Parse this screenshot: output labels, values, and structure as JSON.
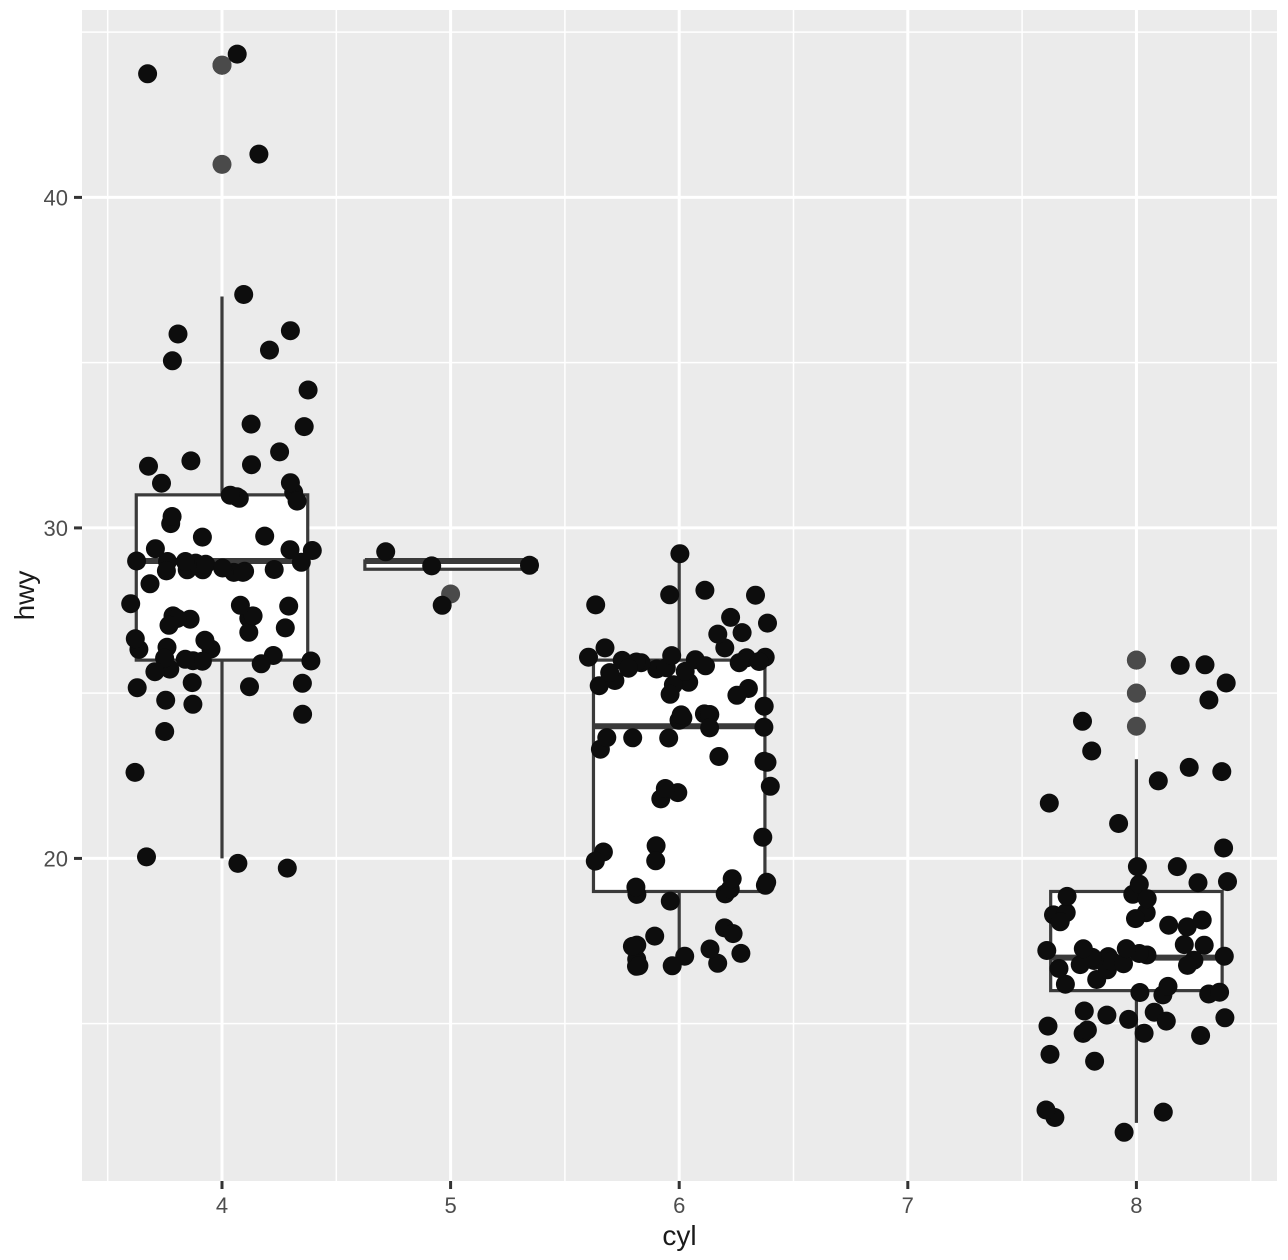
{
  "chart_data": {
    "type": "boxplot",
    "subtype": "boxplot-with-jittered-points",
    "title": "",
    "xlabel": "cyl",
    "ylabel": "hwy",
    "legend": "none",
    "grid": true,
    "x_ticks": [
      4,
      5,
      6,
      7,
      8
    ],
    "x_tick_labels": [
      "4",
      "5",
      "6",
      "7",
      "8"
    ],
    "y_ticks": [
      20,
      30,
      40
    ],
    "y_tick_labels": [
      "20",
      "30",
      "40"
    ],
    "x_minor_ticks": [
      3.5,
      4.5,
      5.5,
      6.5,
      7.5,
      8.5
    ],
    "y_minor_ticks": [
      15,
      25,
      35,
      45
    ],
    "xlim": [
      3.3876,
      8.615
    ],
    "ylim": [
      10.24,
      45.67
    ],
    "box_width": 0.75,
    "jitter_width": 0.4,
    "jitter_height": 0.4,
    "groups": [
      {
        "cyl": 4,
        "n": 81,
        "box": {
          "whisker_low": 20,
          "q1": 26,
          "median": 29,
          "q3": 31,
          "whisker_high": 37
        },
        "outliers": [
          41,
          44,
          44
        ],
        "values": [
          20,
          20,
          20,
          23,
          24,
          24,
          25,
          25,
          25,
          25,
          25,
          25,
          26,
          26,
          26,
          26,
          26,
          26,
          26,
          26,
          26,
          26,
          26,
          26,
          27,
          27,
          27,
          27,
          27,
          27,
          27,
          27,
          27,
          27,
          28,
          28,
          28,
          28,
          29,
          29,
          29,
          29,
          29,
          29,
          29,
          29,
          29,
          29,
          29,
          29,
          29,
          29,
          29,
          29,
          29,
          30,
          30,
          30,
          30,
          31,
          31,
          31,
          31,
          31,
          31,
          31,
          32,
          32,
          32,
          32,
          33,
          33,
          34,
          35,
          35,
          36,
          36,
          37,
          41,
          44,
          44
        ]
      },
      {
        "cyl": 5,
        "n": 4,
        "box": {
          "whisker_low": 28.75,
          "q1": 28.75,
          "median": 29,
          "q3": 29,
          "whisker_high": 29
        },
        "outliers": [
          28
        ],
        "values": [
          28,
          29,
          29,
          29
        ]
      },
      {
        "cyl": 6,
        "n": 79,
        "box": {
          "whisker_low": 17,
          "q1": 19,
          "median": 24,
          "q3": 26,
          "whisker_high": 29
        },
        "outliers": [],
        "values": [
          17,
          17,
          17,
          17,
          17,
          17,
          17,
          17,
          17,
          17,
          18,
          18,
          18,
          19,
          19,
          19,
          19,
          19,
          19,
          19,
          19,
          20,
          20,
          20,
          20,
          21,
          22,
          22,
          22,
          22,
          23,
          23,
          23,
          23,
          24,
          24,
          24,
          24,
          24,
          24,
          24,
          24,
          24,
          24,
          25,
          25,
          25,
          25,
          25,
          25,
          25,
          25,
          26,
          26,
          26,
          26,
          26,
          26,
          26,
          26,
          26,
          26,
          26,
          26,
          26,
          26,
          26,
          26,
          26,
          26,
          27,
          27,
          27,
          27,
          28,
          28,
          28,
          28,
          29
        ]
      },
      {
        "cyl": 8,
        "n": 70,
        "box": {
          "whisker_low": 12,
          "q1": 16,
          "median": 17,
          "q3": 19,
          "whisker_high": 23
        },
        "outliers": [
          24,
          25,
          25,
          26,
          26
        ],
        "values": [
          12,
          12,
          12,
          12,
          14,
          14,
          15,
          15,
          15,
          15,
          15,
          15,
          15,
          15,
          15,
          15,
          15,
          16,
          16,
          16,
          16,
          16,
          16,
          16,
          17,
          17,
          17,
          17,
          17,
          17,
          17,
          17,
          17,
          17,
          17,
          17,
          17,
          17,
          17,
          17,
          17,
          17,
          18,
          18,
          18,
          18,
          18,
          18,
          18,
          18,
          19,
          19,
          19,
          19,
          19,
          19,
          20,
          20,
          20,
          21,
          22,
          22,
          23,
          23,
          23,
          24,
          25,
          25,
          26,
          26
        ]
      }
    ],
    "colors": {
      "background": "#FFFFFF",
      "panel": "#EBEBEB",
      "grid_major": "#FFFFFF",
      "grid_minor": "#FFFFFF",
      "box_border": "#3A3A3A",
      "box_fill": "#FFFFFF",
      "point": "#0D0D0D",
      "outlier_point": "#4A4A4A",
      "tick_mark": "#333333",
      "tick_label": "#4D4D4D",
      "axis_title": "#1A1A1A"
    }
  },
  "axes": {
    "x_title": "cyl",
    "y_title": "hwy"
  }
}
